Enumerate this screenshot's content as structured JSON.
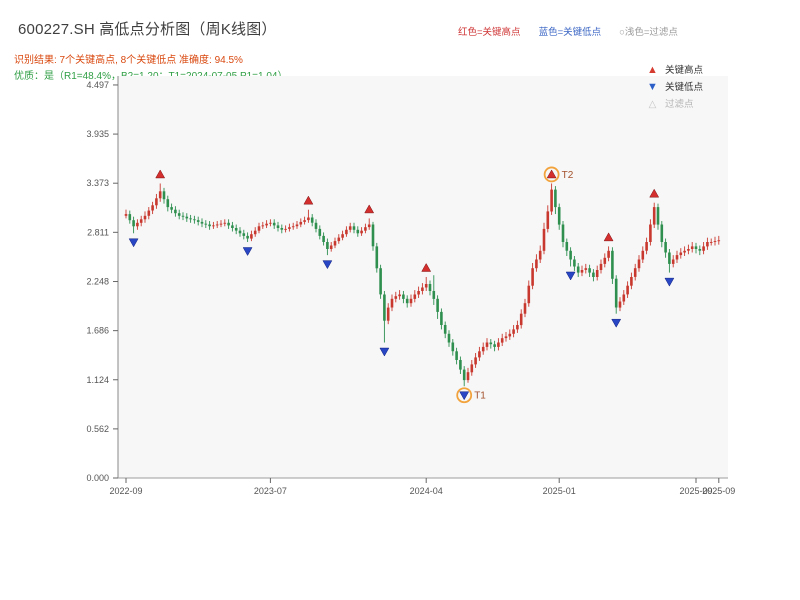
{
  "header": {
    "title": "600227.SH 高低点分析图（周K线图）",
    "legend_inline": [
      {
        "text": "红色=关键高点",
        "color": "#cf3434"
      },
      {
        "text": "蓝色=关键低点",
        "color": "#3b66c4"
      },
      {
        "text": "○浅色=过滤点",
        "color": "#9a9a9a"
      }
    ],
    "result_line": "识别结果: 7个关键高点, 8个关键低点  准确度: 94.5%",
    "quality_line": "优质：是（R1=48.4%，B2=1.20；T1=2024-07-05 P1=1.04）"
  },
  "chart_data": {
    "type": "candlestick",
    "title": "600227.SH 高低点分析图（周K线图）",
    "frequency": "weekly",
    "ylim": [
      0,
      4.497
    ],
    "y_tick_labels": [
      "0.000",
      "0.562",
      "1.124",
      "1.686",
      "2.248",
      "2.811",
      "3.373",
      "3.935",
      "4.497"
    ],
    "x_ticks": [
      {
        "week": 0,
        "label": "2022-09"
      },
      {
        "week": 38,
        "label": "2023-07"
      },
      {
        "week": 79,
        "label": "2024-04"
      },
      {
        "week": 114,
        "label": "2025-01"
      },
      {
        "week": 150,
        "label": "2025-09"
      },
      {
        "week": 156,
        "label": "2025-09"
      }
    ],
    "up_color": "#c9382e",
    "down_color": "#2e8f4e",
    "high_marker_color": "#d32f2f",
    "low_marker_color": "#2947c4",
    "filtered_circle_color": "#f2a33c",
    "annotation_text_color": "#a3512b",
    "legend": [
      {
        "label": "关键高点",
        "type": "up"
      },
      {
        "label": "关键低点",
        "type": "down"
      },
      {
        "label": "过滤点",
        "type": "filtered"
      }
    ],
    "candles": [
      [
        3.0,
        3.07,
        2.97,
        3.02
      ],
      [
        3.02,
        3.06,
        2.91,
        2.95
      ],
      [
        2.95,
        2.99,
        2.8,
        2.88
      ],
      [
        2.88,
        2.96,
        2.84,
        2.92
      ],
      [
        2.92,
        3.0,
        2.88,
        2.96
      ],
      [
        2.96,
        3.05,
        2.92,
        3.0
      ],
      [
        3.0,
        3.1,
        2.96,
        3.06
      ],
      [
        3.06,
        3.16,
        3.02,
        3.12
      ],
      [
        3.12,
        3.25,
        3.08,
        3.2
      ],
      [
        3.2,
        3.37,
        3.16,
        3.28
      ],
      [
        3.28,
        3.32,
        3.14,
        3.19
      ],
      [
        3.19,
        3.23,
        3.05,
        3.1
      ],
      [
        3.1,
        3.14,
        3.03,
        3.07
      ],
      [
        3.07,
        3.11,
        2.99,
        3.03
      ],
      [
        3.03,
        3.07,
        2.96,
        3.0
      ],
      [
        3.0,
        3.04,
        2.95,
        2.99
      ],
      [
        2.99,
        3.03,
        2.93,
        2.97
      ],
      [
        2.97,
        3.01,
        2.92,
        2.96
      ],
      [
        2.96,
        3.0,
        2.91,
        2.95
      ],
      [
        2.95,
        2.99,
        2.89,
        2.93
      ],
      [
        2.93,
        2.97,
        2.87,
        2.91
      ],
      [
        2.91,
        2.95,
        2.86,
        2.9
      ],
      [
        2.9,
        2.94,
        2.84,
        2.88
      ],
      [
        2.88,
        2.93,
        2.85,
        2.89
      ],
      [
        2.89,
        2.94,
        2.86,
        2.9
      ],
      [
        2.9,
        2.95,
        2.87,
        2.91
      ],
      [
        2.91,
        2.96,
        2.88,
        2.92
      ],
      [
        2.92,
        2.96,
        2.85,
        2.89
      ],
      [
        2.89,
        2.93,
        2.82,
        2.86
      ],
      [
        2.86,
        2.9,
        2.79,
        2.83
      ],
      [
        2.83,
        2.87,
        2.76,
        2.8
      ],
      [
        2.8,
        2.84,
        2.73,
        2.77
      ],
      [
        2.77,
        2.81,
        2.7,
        2.74
      ],
      [
        2.74,
        2.83,
        2.71,
        2.79
      ],
      [
        2.79,
        2.87,
        2.76,
        2.83
      ],
      [
        2.83,
        2.92,
        2.8,
        2.88
      ],
      [
        2.88,
        2.93,
        2.85,
        2.89
      ],
      [
        2.89,
        2.95,
        2.86,
        2.91
      ],
      [
        2.91,
        2.96,
        2.88,
        2.92
      ],
      [
        2.92,
        2.96,
        2.85,
        2.89
      ],
      [
        2.89,
        2.93,
        2.82,
        2.86
      ],
      [
        2.86,
        2.9,
        2.8,
        2.84
      ],
      [
        2.84,
        2.89,
        2.81,
        2.85
      ],
      [
        2.85,
        2.91,
        2.82,
        2.87
      ],
      [
        2.87,
        2.92,
        2.84,
        2.88
      ],
      [
        2.88,
        2.94,
        2.85,
        2.9
      ],
      [
        2.9,
        2.97,
        2.87,
        2.93
      ],
      [
        2.93,
        2.99,
        2.9,
        2.95
      ],
      [
        2.95,
        3.07,
        2.92,
        2.98
      ],
      [
        2.98,
        3.02,
        2.88,
        2.92
      ],
      [
        2.92,
        2.96,
        2.81,
        2.85
      ],
      [
        2.85,
        2.89,
        2.73,
        2.77
      ],
      [
        2.77,
        2.81,
        2.66,
        2.7
      ],
      [
        2.7,
        2.74,
        2.55,
        2.62
      ],
      [
        2.62,
        2.7,
        2.59,
        2.66
      ],
      [
        2.66,
        2.75,
        2.63,
        2.71
      ],
      [
        2.71,
        2.79,
        2.68,
        2.75
      ],
      [
        2.75,
        2.83,
        2.72,
        2.79
      ],
      [
        2.79,
        2.88,
        2.76,
        2.84
      ],
      [
        2.84,
        2.92,
        2.81,
        2.88
      ],
      [
        2.88,
        2.92,
        2.8,
        2.84
      ],
      [
        2.84,
        2.88,
        2.76,
        2.8
      ],
      [
        2.8,
        2.87,
        2.77,
        2.83
      ],
      [
        2.83,
        2.91,
        2.8,
        2.87
      ],
      [
        2.87,
        2.97,
        2.84,
        2.9
      ],
      [
        2.9,
        2.93,
        2.6,
        2.65
      ],
      [
        2.65,
        2.69,
        2.35,
        2.4
      ],
      [
        2.4,
        2.44,
        2.05,
        2.1
      ],
      [
        2.1,
        2.14,
        1.55,
        1.8
      ],
      [
        1.8,
        2.0,
        1.76,
        1.95
      ],
      [
        1.95,
        2.1,
        1.91,
        2.05
      ],
      [
        2.05,
        2.13,
        2.01,
        2.08
      ],
      [
        2.08,
        2.15,
        2.04,
        2.1
      ],
      [
        2.1,
        2.14,
        2.0,
        2.05
      ],
      [
        2.05,
        2.09,
        1.95,
        2.0
      ],
      [
        2.0,
        2.1,
        1.96,
        2.05
      ],
      [
        2.05,
        2.15,
        2.01,
        2.1
      ],
      [
        2.1,
        2.19,
        2.06,
        2.14
      ],
      [
        2.14,
        2.23,
        2.1,
        2.18
      ],
      [
        2.18,
        2.3,
        2.14,
        2.22
      ],
      [
        2.22,
        2.26,
        2.09,
        2.14
      ],
      [
        2.14,
        2.32,
        1.98,
        2.05
      ],
      [
        2.05,
        2.09,
        1.82,
        1.9
      ],
      [
        1.9,
        1.94,
        1.7,
        1.75
      ],
      [
        1.75,
        1.79,
        1.6,
        1.65
      ],
      [
        1.65,
        1.69,
        1.5,
        1.55
      ],
      [
        1.55,
        1.59,
        1.4,
        1.45
      ],
      [
        1.45,
        1.49,
        1.3,
        1.35
      ],
      [
        1.35,
        1.39,
        1.19,
        1.24
      ],
      [
        1.24,
        1.28,
        1.05,
        1.12
      ],
      [
        1.12,
        1.26,
        1.09,
        1.21
      ],
      [
        1.21,
        1.35,
        1.17,
        1.3
      ],
      [
        1.3,
        1.43,
        1.26,
        1.38
      ],
      [
        1.38,
        1.5,
        1.34,
        1.45
      ],
      [
        1.45,
        1.55,
        1.41,
        1.5
      ],
      [
        1.5,
        1.6,
        1.46,
        1.55
      ],
      [
        1.55,
        1.59,
        1.48,
        1.53
      ],
      [
        1.53,
        1.57,
        1.45,
        1.5
      ],
      [
        1.5,
        1.6,
        1.46,
        1.55
      ],
      [
        1.55,
        1.65,
        1.51,
        1.6
      ],
      [
        1.6,
        1.67,
        1.56,
        1.62
      ],
      [
        1.62,
        1.7,
        1.58,
        1.65
      ],
      [
        1.65,
        1.75,
        1.61,
        1.7
      ],
      [
        1.7,
        1.8,
        1.66,
        1.75
      ],
      [
        1.75,
        1.93,
        1.71,
        1.88
      ],
      [
        1.88,
        2.05,
        1.84,
        2.0
      ],
      [
        2.0,
        2.26,
        1.96,
        2.2
      ],
      [
        2.2,
        2.46,
        2.16,
        2.4
      ],
      [
        2.4,
        2.56,
        2.36,
        2.5
      ],
      [
        2.5,
        2.66,
        2.46,
        2.6
      ],
      [
        2.6,
        2.92,
        2.56,
        2.85
      ],
      [
        2.85,
        3.12,
        2.81,
        3.05
      ],
      [
        3.05,
        3.37,
        3.01,
        3.3
      ],
      [
        3.3,
        3.34,
        3.02,
        3.1
      ],
      [
        3.1,
        3.14,
        2.84,
        2.9
      ],
      [
        2.9,
        2.94,
        2.64,
        2.7
      ],
      [
        2.7,
        2.74,
        2.54,
        2.6
      ],
      [
        2.6,
        2.64,
        2.42,
        2.5
      ],
      [
        2.5,
        2.54,
        2.37,
        2.42
      ],
      [
        2.42,
        2.46,
        2.3,
        2.35
      ],
      [
        2.35,
        2.43,
        2.31,
        2.38
      ],
      [
        2.38,
        2.45,
        2.34,
        2.4
      ],
      [
        2.4,
        2.44,
        2.3,
        2.35
      ],
      [
        2.35,
        2.39,
        2.25,
        2.3
      ],
      [
        2.3,
        2.43,
        2.26,
        2.38
      ],
      [
        2.38,
        2.5,
        2.34,
        2.45
      ],
      [
        2.45,
        2.57,
        2.41,
        2.52
      ],
      [
        2.52,
        2.65,
        2.48,
        2.6
      ],
      [
        2.6,
        2.64,
        2.22,
        2.28
      ],
      [
        2.28,
        2.32,
        1.88,
        1.95
      ],
      [
        1.95,
        2.07,
        1.91,
        2.02
      ],
      [
        2.02,
        2.15,
        1.98,
        2.1
      ],
      [
        2.1,
        2.25,
        2.06,
        2.2
      ],
      [
        2.2,
        2.35,
        2.16,
        2.3
      ],
      [
        2.3,
        2.45,
        2.26,
        2.4
      ],
      [
        2.4,
        2.55,
        2.36,
        2.5
      ],
      [
        2.5,
        2.65,
        2.46,
        2.6
      ],
      [
        2.6,
        2.75,
        2.56,
        2.7
      ],
      [
        2.7,
        2.96,
        2.66,
        2.9
      ],
      [
        2.9,
        3.15,
        2.86,
        3.1
      ],
      [
        3.1,
        3.14,
        2.84,
        2.9
      ],
      [
        2.9,
        2.94,
        2.64,
        2.7
      ],
      [
        2.7,
        2.74,
        2.52,
        2.58
      ],
      [
        2.58,
        2.62,
        2.35,
        2.45
      ],
      [
        2.45,
        2.55,
        2.41,
        2.5
      ],
      [
        2.5,
        2.6,
        2.46,
        2.55
      ],
      [
        2.55,
        2.63,
        2.51,
        2.58
      ],
      [
        2.58,
        2.65,
        2.54,
        2.6
      ],
      [
        2.6,
        2.67,
        2.56,
        2.62
      ],
      [
        2.62,
        2.7,
        2.58,
        2.65
      ],
      [
        2.65,
        2.69,
        2.57,
        2.62
      ],
      [
        2.62,
        2.66,
        2.55,
        2.6
      ],
      [
        2.6,
        2.7,
        2.56,
        2.65
      ],
      [
        2.65,
        2.75,
        2.61,
        2.7
      ],
      [
        2.7,
        2.74,
        2.66,
        2.7
      ],
      [
        2.7,
        2.76,
        2.66,
        2.71
      ],
      [
        2.71,
        2.77,
        2.67,
        2.72
      ]
    ],
    "key_highs": [
      {
        "week": 9,
        "price": 3.37
      },
      {
        "week": 48,
        "price": 3.07
      },
      {
        "week": 64,
        "price": 2.97
      },
      {
        "week": 79,
        "price": 2.3
      },
      {
        "week": 112,
        "price": 3.37
      },
      {
        "week": 127,
        "price": 2.65
      },
      {
        "week": 139,
        "price": 3.15
      }
    ],
    "key_lows": [
      {
        "week": 2,
        "price": 2.8
      },
      {
        "week": 32,
        "price": 2.7
      },
      {
        "week": 53,
        "price": 2.55
      },
      {
        "week": 68,
        "price": 1.55
      },
      {
        "week": 89,
        "price": 1.05
      },
      {
        "week": 117,
        "price": 2.42
      },
      {
        "week": 129,
        "price": 1.88
      },
      {
        "week": 143,
        "price": 2.35
      }
    ],
    "annotations": [
      {
        "label": "T1",
        "week": 89,
        "price": 1.05,
        "type": "low"
      },
      {
        "label": "T2",
        "week": 112,
        "price": 3.37,
        "type": "high"
      }
    ]
  }
}
